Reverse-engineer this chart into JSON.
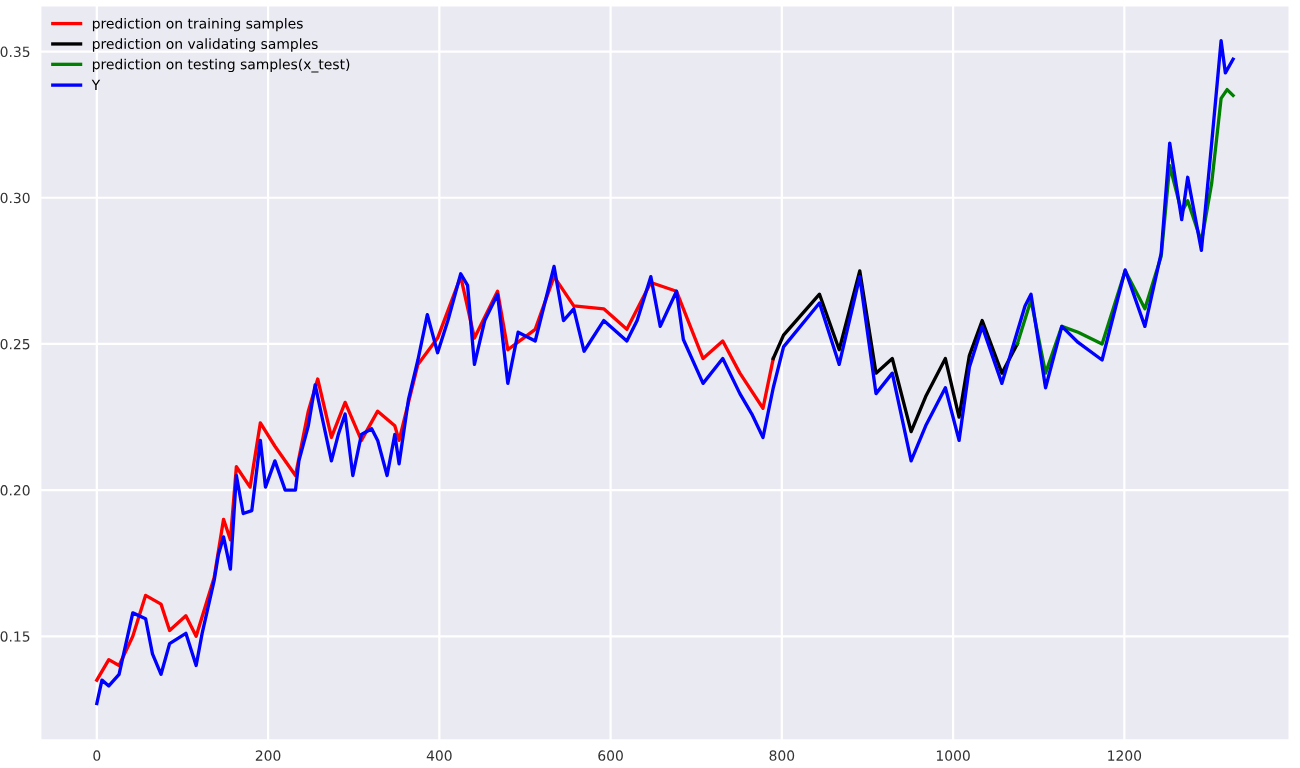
{
  "chart_data": {
    "type": "line",
    "xlim": [
      -66,
      1393
    ],
    "ylim": [
      0.1144,
      0.3658
    ],
    "xticks": [
      0,
      200,
      400,
      600,
      800,
      1000,
      1200
    ],
    "yticks": [
      0.15,
      {
        "value": 0.2,
        "label": "0.20"
      },
      0.25,
      {
        "value": 0.3,
        "label": "0.30"
      },
      0.35
    ],
    "grid": true,
    "legend": "top left",
    "marker": "none",
    "line_style": "solid",
    "series": [
      {
        "name": "prediction on training samples",
        "color": "#ff0000",
        "x": [
          0,
          14,
          26,
          42,
          57,
          75,
          85,
          104,
          116,
          137,
          148,
          156,
          163,
          179,
          191,
          208,
          232,
          247,
          258,
          274,
          290,
          309,
          328,
          348,
          353,
          375,
          398,
          425,
          441,
          468,
          480,
          512,
          534,
          557,
          592,
          619,
          647,
          677,
          708,
          731,
          751,
          778,
          790
        ],
        "values": [
          0.135,
          0.142,
          0.14,
          0.15,
          0.164,
          0.161,
          0.152,
          0.157,
          0.15,
          0.17,
          0.19,
          0.183,
          0.208,
          0.201,
          0.223,
          0.215,
          0.205,
          0.227,
          0.238,
          0.218,
          0.23,
          0.217,
          0.227,
          0.222,
          0.217,
          0.243,
          0.252,
          0.273,
          0.252,
          0.268,
          0.248,
          0.255,
          0.273,
          0.263,
          0.262,
          0.255,
          0.271,
          0.268,
          0.245,
          0.251,
          0.24,
          0.228,
          0.245
        ]
      },
      {
        "name": "prediction on validating samples",
        "color": "#000000",
        "x": [
          790,
          802,
          844,
          867,
          891,
          910,
          929,
          951,
          968,
          991,
          1007,
          1019,
          1034,
          1057,
          1075
        ],
        "values": [
          0.245,
          0.253,
          0.267,
          0.248,
          0.275,
          0.24,
          0.245,
          0.22,
          0.232,
          0.245,
          0.225,
          0.246,
          0.258,
          0.24,
          0.25
        ]
      },
      {
        "name": "prediction on testing samples(x_test)",
        "color": "#008000",
        "x": [
          1075,
          1091,
          1108,
          1127,
          1146,
          1174,
          1201,
          1224,
          1243,
          1253,
          1267,
          1274,
          1290,
          1302,
          1313,
          1320,
          1327
        ],
        "values": [
          0.25,
          0.265,
          0.24,
          0.256,
          0.254,
          0.25,
          0.275,
          0.262,
          0.28,
          0.311,
          0.295,
          0.299,
          0.285,
          0.305,
          0.334,
          0.337,
          0.335
        ]
      },
      {
        "name": "Y",
        "color": "#0000ff",
        "x": [
          0,
          6,
          14,
          26,
          42,
          57,
          65,
          75,
          85,
          104,
          116,
          123,
          137,
          142,
          148,
          156,
          163,
          171,
          181,
          191,
          197,
          208,
          220,
          232,
          236,
          247,
          255,
          263,
          274,
          282,
          290,
          299,
          309,
          321,
          328,
          339,
          348,
          353,
          364,
          375,
          386,
          398,
          410,
          425,
          433,
          441,
          453,
          468,
          480,
          492,
          512,
          518,
          534,
          545,
          557,
          569,
          592,
          619,
          631,
          647,
          658,
          677,
          685,
          708,
          731,
          751,
          765,
          778,
          790,
          802,
          844,
          867,
          891,
          910,
          929,
          951,
          968,
          991,
          1007,
          1019,
          1034,
          1057,
          1084,
          1091,
          1108,
          1127,
          1146,
          1174,
          1201,
          1224,
          1243,
          1253,
          1267,
          1274,
          1290,
          1302,
          1313,
          1318,
          1327
        ],
        "values": [
          0.127,
          0.135,
          0.133,
          0.137,
          0.158,
          0.156,
          0.144,
          0.137,
          0.1475,
          0.151,
          0.14,
          0.151,
          0.169,
          0.178,
          0.184,
          0.173,
          0.205,
          0.192,
          0.193,
          0.217,
          0.201,
          0.21,
          0.2,
          0.2,
          0.21,
          0.222,
          0.236,
          0.225,
          0.21,
          0.219,
          0.226,
          0.205,
          0.219,
          0.221,
          0.217,
          0.205,
          0.219,
          0.209,
          0.231,
          0.2445,
          0.26,
          0.247,
          0.258,
          0.274,
          0.27,
          0.243,
          0.258,
          0.267,
          0.2365,
          0.254,
          0.251,
          0.258,
          0.2765,
          0.258,
          0.262,
          0.2475,
          0.258,
          0.251,
          0.258,
          0.273,
          0.256,
          0.268,
          0.2515,
          0.2365,
          0.245,
          0.233,
          0.226,
          0.218,
          0.235,
          0.249,
          0.264,
          0.243,
          0.273,
          0.233,
          0.24,
          0.21,
          0.222,
          0.235,
          0.217,
          0.242,
          0.256,
          0.2365,
          0.263,
          0.267,
          0.235,
          0.256,
          0.2505,
          0.2445,
          0.2753,
          0.256,
          0.281,
          0.3187,
          0.2925,
          0.307,
          0.282,
          0.3187,
          0.3537,
          0.3427,
          0.3474
        ]
      }
    ]
  }
}
